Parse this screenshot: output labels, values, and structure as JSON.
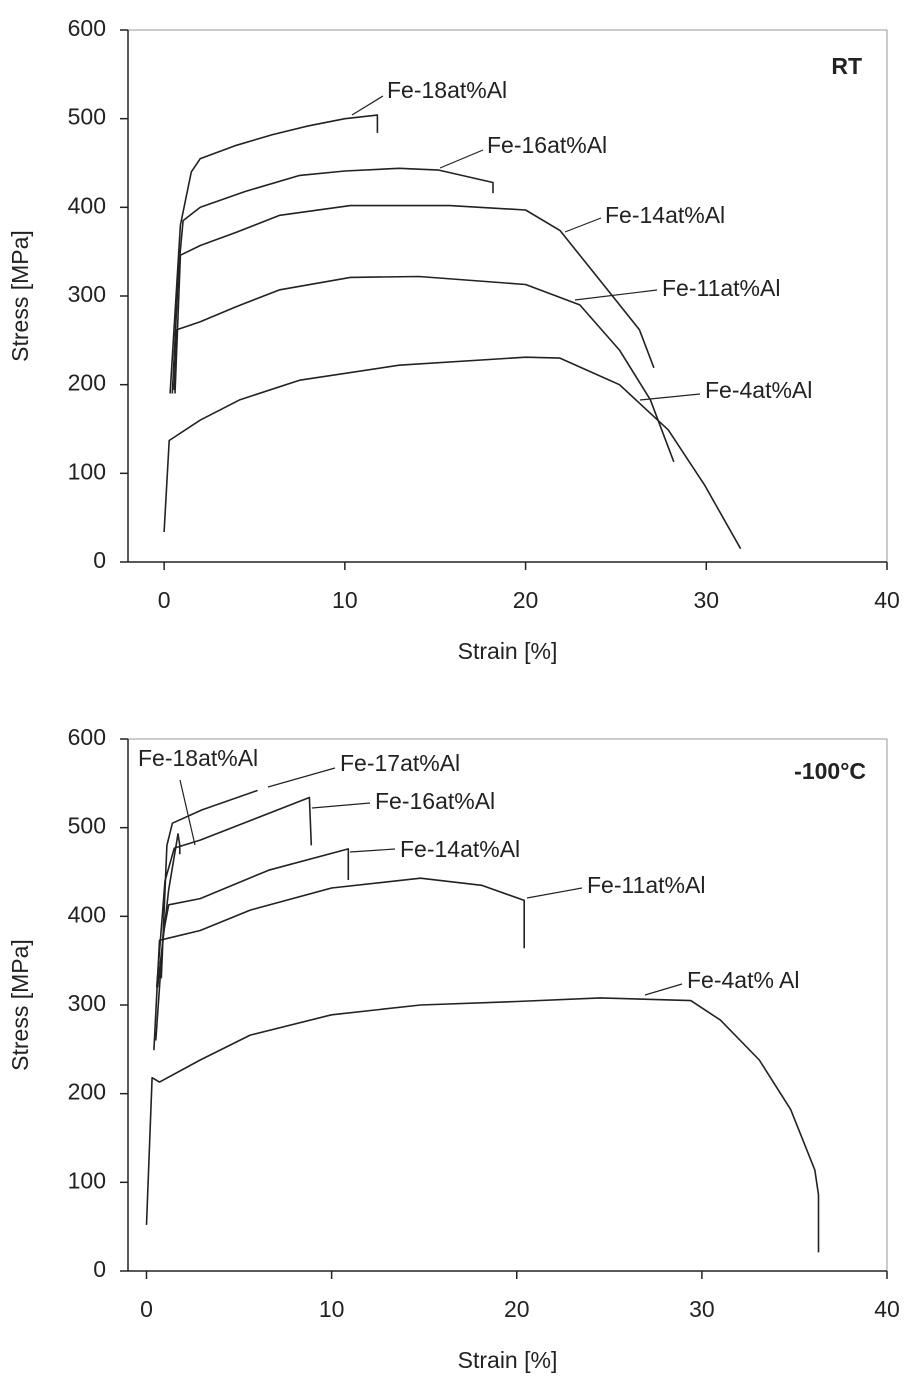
{
  "chart_data": [
    {
      "type": "line",
      "annotation": "RT",
      "xlabel": "Strain [%]",
      "ylabel": "Stress [MPa]",
      "xlim": [
        -2,
        40
      ],
      "xticks": [
        0,
        10,
        20,
        30,
        40
      ],
      "ylim": [
        0,
        600
      ],
      "yticks": [
        0,
        100,
        200,
        300,
        400,
        500,
        600
      ],
      "series": [
        {
          "name": "Fe-18at%Al",
          "color": "#222222",
          "x": [
            0.33,
            0.9,
            1.5,
            2,
            4,
            6,
            8,
            10,
            11.8,
            11.8
          ],
          "values": [
            190,
            380,
            440,
            455,
            470,
            482,
            492,
            500,
            504,
            484
          ]
        },
        {
          "name": "Fe-16at%Al",
          "color": "#222222",
          "x": [
            0.45,
            0.8,
            1.05,
            2,
            4.5,
            7.5,
            10,
            13,
            15.2,
            18.2,
            18.2
          ],
          "values": [
            190,
            330,
            385,
            400,
            418,
            436,
            441,
            444,
            442,
            428,
            416
          ]
        },
        {
          "name": "Fe-14at%Al",
          "color": "#222222",
          "x": [
            0.6,
            0.9,
            2,
            4,
            6.4,
            10.3,
            15.8,
            20,
            21.9,
            24.1,
            26.3,
            27.1
          ],
          "values": [
            190,
            346,
            357,
            372,
            391,
            402,
            402,
            397,
            374,
            318,
            262,
            219
          ]
        },
        {
          "name": "Fe-11at%Al",
          "color": "#222222",
          "x": [
            0.55,
            0.7,
            2,
            4,
            6.4,
            10.3,
            14.1,
            20,
            23,
            25.2,
            26.9,
            28.2
          ],
          "values": [
            194,
            262,
            271,
            288,
            307,
            321,
            322,
            313,
            290,
            239,
            183,
            113
          ]
        },
        {
          "name": "Fe-4at%Al",
          "color": "#222222",
          "x": [
            0,
            0.28,
            2,
            4.2,
            7.5,
            13,
            20,
            21.9,
            25.2,
            27.9,
            29.9,
            31.9
          ],
          "values": [
            34,
            137,
            160,
            183,
            205,
            222,
            231,
            230,
            200,
            149,
            87,
            15
          ]
        }
      ]
    },
    {
      "type": "line",
      "annotation": "-100°C",
      "xlabel": "Strain [%]",
      "ylabel": "Stress [MPa]",
      "xlim": [
        -1,
        40
      ],
      "xticks": [
        0,
        10,
        20,
        30,
        40
      ],
      "ylim": [
        0,
        600
      ],
      "yticks": [
        0,
        100,
        200,
        300,
        400,
        500,
        600
      ],
      "series": [
        {
          "name": "Fe-18at%Al",
          "color": "#222222",
          "x": [
            0.6,
            1.2,
            1.7,
            1.8,
            1.8
          ],
          "values": [
            320,
            430,
            493,
            480,
            470
          ]
        },
        {
          "name": "Fe-17at%Al",
          "color": "#222222",
          "x": [
            0.8,
            1.1,
            1.4,
            3,
            6
          ],
          "values": [
            330,
            480,
            505,
            520,
            542
          ]
        },
        {
          "name": "Fe-16at%Al",
          "color": "#222222",
          "x": [
            0.55,
            1,
            1.5,
            2.9,
            5.6,
            8.8,
            8.9
          ],
          "values": [
            320,
            440,
            477,
            486,
            508,
            534,
            480
          ]
        },
        {
          "name": "Fe-14at%Al",
          "color": "#222222",
          "x": [
            0.5,
            0.9,
            1.2,
            2.9,
            6.6,
            10.9,
            10.9
          ],
          "values": [
            260,
            380,
            413,
            420,
            452,
            476,
            441
          ]
        },
        {
          "name": "Fe-11at%Al",
          "color": "#222222",
          "x": [
            0.4,
            0.7,
            2.9,
            5.6,
            10,
            14.8,
            18.1,
            20.4,
            20.4
          ],
          "values": [
            249,
            373,
            384,
            407,
            432,
            443,
            435,
            418,
            364
          ]
        },
        {
          "name": "Fe-4at% Al",
          "color": "#222222",
          "x": [
            0,
            0.3,
            0.7,
            2.9,
            5.6,
            10,
            14.8,
            20,
            24.5,
            29.4,
            31,
            33.1,
            34.8,
            36.1,
            36.3,
            36.3
          ],
          "values": [
            52,
            218,
            213,
            238,
            266,
            289,
            300,
            304,
            308,
            305,
            283,
            238,
            182,
            114,
            86,
            21
          ]
        }
      ]
    }
  ]
}
